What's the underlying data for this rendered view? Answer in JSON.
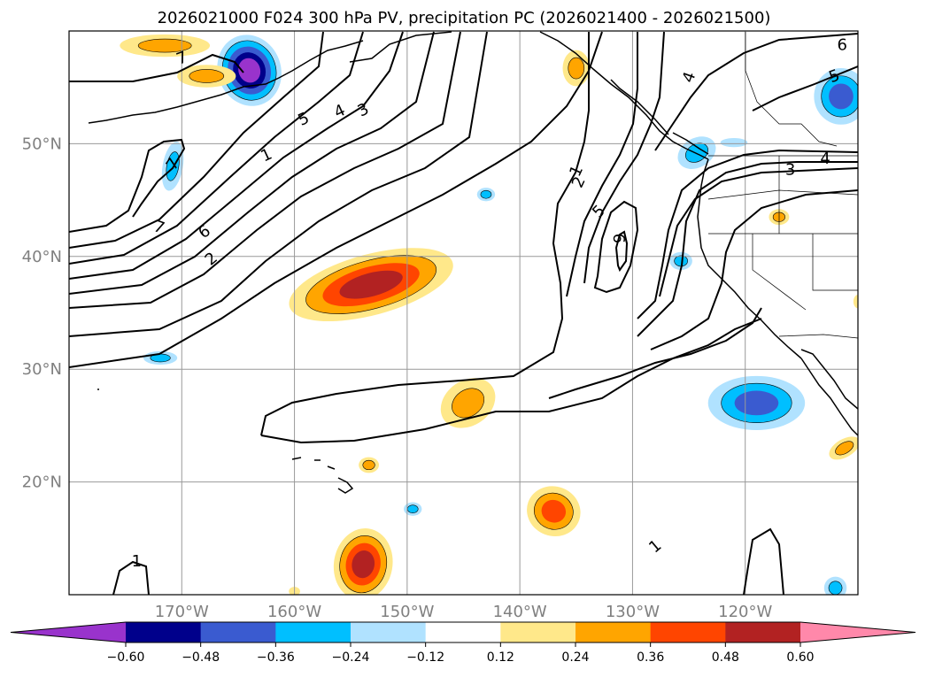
{
  "chart_data": {
    "type": "contour-map",
    "title": "2026021000 F024 300 hPa PV, precipitation PC (2026021400 - 2026021500)",
    "map": {
      "lon_range": [
        -180,
        -110
      ],
      "lat_range": [
        10,
        60
      ],
      "gridlines": true,
      "lon_ticks": [
        {
          "value": -170,
          "label": "170°W"
        },
        {
          "value": -160,
          "label": "160°W"
        },
        {
          "value": -150,
          "label": "150°W"
        },
        {
          "value": -140,
          "label": "140°W"
        },
        {
          "value": -130,
          "label": "130°W"
        },
        {
          "value": -120,
          "label": "120°W"
        }
      ],
      "lat_ticks": [
        {
          "value": 20,
          "label": "20°N"
        },
        {
          "value": 30,
          "label": "30°N"
        },
        {
          "value": 40,
          "label": "40°N"
        },
        {
          "value": 50,
          "label": "50°N"
        }
      ]
    },
    "colorbar": {
      "orientation": "horizontal",
      "extend": "both",
      "boundaries": [
        -0.6,
        -0.48,
        -0.36,
        -0.24,
        -0.12,
        0.12,
        0.24,
        0.36,
        0.48,
        0.6
      ],
      "tick_labels": [
        "−0.60",
        "−0.48",
        "−0.36",
        "−0.24",
        "−0.12",
        "0.12",
        "0.24",
        "0.36",
        "0.48",
        "0.60"
      ],
      "colors": [
        "#9933cc",
        "#00008b",
        "#3a5bd0",
        "#00bfff",
        "#b0e2ff",
        "#ffffff",
        "#ffe88a",
        "#ffa500",
        "#ff4500",
        "#b22222",
        "#ff88aa"
      ]
    },
    "pv_contours": {
      "levels": [
        1,
        2,
        3,
        4,
        5,
        6,
        7
      ],
      "labels": [
        {
          "text": "1",
          "lon": -162.5,
          "lat": 49.0,
          "rot": -25
        },
        {
          "text": "5",
          "lon": -159.2,
          "lat": 52.2,
          "rot": -25
        },
        {
          "text": "4",
          "lon": -156.0,
          "lat": 52.9,
          "rot": -25
        },
        {
          "text": "3",
          "lon": -153.9,
          "lat": 53.0,
          "rot": -25
        },
        {
          "text": "7",
          "lon": -172.0,
          "lat": 42.6,
          "rot": 20
        },
        {
          "text": "6",
          "lon": -168.0,
          "lat": 42.2,
          "rot": -35
        },
        {
          "text": "2",
          "lon": -167.4,
          "lat": 39.8,
          "rot": -40
        },
        {
          "text": "7",
          "lon": -170.8,
          "lat": 48.2,
          "rot": -55
        },
        {
          "text": "7",
          "lon": -170.0,
          "lat": 57.6,
          "rot": -20
        },
        {
          "text": "1",
          "lon": -135.0,
          "lat": 47.6,
          "rot": -65
        },
        {
          "text": "2",
          "lon": -134.8,
          "lat": 46.6,
          "rot": -65
        },
        {
          "text": "5",
          "lon": -133.0,
          "lat": 44.0,
          "rot": -45
        },
        {
          "text": "6",
          "lon": -131.2,
          "lat": 41.6,
          "rot": 90
        },
        {
          "text": "4",
          "lon": -125.0,
          "lat": 55.9,
          "rot": -70
        },
        {
          "text": "5",
          "lon": -112.1,
          "lat": 56.0,
          "rot": -20
        },
        {
          "text": "6",
          "lon": -111.4,
          "lat": 58.8,
          "rot": 0
        },
        {
          "text": "3",
          "lon": -116.0,
          "lat": 47.7,
          "rot": 0
        },
        {
          "text": "4",
          "lon": -112.9,
          "lat": 48.7,
          "rot": 0
        },
        {
          "text": "1",
          "lon": -174.0,
          "lat": 13.0,
          "rot": 0
        },
        {
          "text": "1",
          "lon": -128.0,
          "lat": 14.3,
          "rot": -40
        }
      ]
    },
    "precip_regions": [
      {
        "name": "sw-negative",
        "lon": -164,
        "lat": 56.5,
        "rx": 2.8,
        "ry": 3.2,
        "rot": -20,
        "levels": [
          -0.12,
          -0.24,
          -0.36,
          -0.48,
          -0.6
        ]
      },
      {
        "name": "alaska-positive",
        "lon": -135,
        "lat": 56.7,
        "rx": 1.2,
        "ry": 1.6,
        "rot": 0,
        "levels": [
          0.12,
          0.24
        ]
      },
      {
        "name": "nw-corner-positive",
        "lon": -171.5,
        "lat": 58.7,
        "rx": 4.0,
        "ry": 1.0,
        "rot": 0,
        "levels": [
          0.12,
          0.24
        ]
      },
      {
        "name": "nw-corner-positive-b",
        "lon": -167.8,
        "lat": 56.0,
        "rx": 2.6,
        "ry": 1.0,
        "rot": 0,
        "levels": [
          0.12,
          0.24
        ]
      },
      {
        "name": "west-negative",
        "lon": -170.8,
        "lat": 48.0,
        "rx": 0.9,
        "ry": 2.2,
        "rot": 10,
        "levels": [
          -0.12,
          -0.24
        ]
      },
      {
        "name": "subtropic-negative",
        "lon": -171.9,
        "lat": 31.0,
        "rx": 1.5,
        "ry": 0.6,
        "rot": 0,
        "levels": [
          -0.12,
          -0.24
        ]
      },
      {
        "name": "central-positive",
        "lon": -153.2,
        "lat": 37.5,
        "rx": 7.5,
        "ry": 2.7,
        "rot": -15,
        "levels": [
          0.12,
          0.24,
          0.36,
          0.48
        ]
      },
      {
        "name": "central-small-negative",
        "lon": -143.0,
        "lat": 45.5,
        "rx": 0.8,
        "ry": 0.6,
        "rot": 0,
        "levels": [
          -0.12,
          -0.24
        ]
      },
      {
        "name": "mid-positive",
        "lon": -144.6,
        "lat": 27.0,
        "rx": 2.6,
        "ry": 2.0,
        "rot": -35,
        "levels": [
          0.12,
          0.24
        ]
      },
      {
        "name": "hawaii-positive",
        "lon": -153.4,
        "lat": 21.5,
        "rx": 0.9,
        "ry": 0.7,
        "rot": 0,
        "levels": [
          0.12,
          0.24
        ]
      },
      {
        "name": "south-negative",
        "lon": -149.5,
        "lat": 17.6,
        "rx": 0.8,
        "ry": 0.6,
        "rot": 0,
        "levels": [
          -0.12,
          -0.24
        ]
      },
      {
        "name": "south-positive",
        "lon": -153.9,
        "lat": 12.7,
        "rx": 2.6,
        "ry": 3.2,
        "rot": 10,
        "levels": [
          0.12,
          0.24,
          0.36,
          0.48
        ]
      },
      {
        "name": "south-mid-positive",
        "lon": -137.0,
        "lat": 17.4,
        "rx": 2.4,
        "ry": 2.2,
        "rot": 20,
        "levels": [
          0.12,
          0.24,
          0.36
        ]
      },
      {
        "name": "east-negative",
        "lon": -119.0,
        "lat": 27.0,
        "rx": 4.3,
        "ry": 2.4,
        "rot": 0,
        "levels": [
          -0.12,
          -0.24,
          -0.36
        ]
      },
      {
        "name": "ne-negative",
        "lon": -111.5,
        "lat": 54.2,
        "rx": 2.4,
        "ry": 2.5,
        "rot": 0,
        "levels": [
          -0.12,
          -0.24,
          -0.36
        ]
      },
      {
        "name": "coast-negative",
        "lon": -124.3,
        "lat": 49.2,
        "rx": 1.8,
        "ry": 1.3,
        "rot": -30,
        "levels": [
          -0.12,
          -0.24
        ]
      },
      {
        "name": "small-negative",
        "lon": -121.0,
        "lat": 50.1,
        "rx": 1.2,
        "ry": 0.4,
        "rot": 0,
        "levels": [
          -0.12
        ]
      },
      {
        "name": "ca-positive",
        "lon": -117.0,
        "lat": 43.5,
        "rx": 0.9,
        "ry": 0.7,
        "rot": 0,
        "levels": [
          0.12,
          0.24
        ]
      },
      {
        "name": "ca-negative",
        "lon": -125.7,
        "lat": 39.6,
        "rx": 1.0,
        "ry": 0.8,
        "rot": 0,
        "levels": [
          -0.12,
          -0.24
        ]
      },
      {
        "name": "se-small-positive",
        "lon": -111.2,
        "lat": 23.0,
        "rx": 1.5,
        "ry": 0.8,
        "rot": -30,
        "levels": [
          0.12,
          0.24
        ]
      },
      {
        "name": "se-small-negative",
        "lon": -112.0,
        "lat": 10.6,
        "rx": 1.0,
        "ry": 1.0,
        "rot": 0,
        "levels": [
          -0.12,
          -0.24
        ]
      },
      {
        "name": "south-tiny-positive",
        "lon": -160.0,
        "lat": 10.3,
        "rx": 0.5,
        "ry": 0.4,
        "rot": 0,
        "levels": [
          0.12
        ]
      },
      {
        "name": "east-edge-positive",
        "lon": -110.0,
        "lat": 36.0,
        "rx": 0.4,
        "ry": 0.6,
        "rot": 0,
        "levels": [
          0.12
        ]
      }
    ]
  }
}
